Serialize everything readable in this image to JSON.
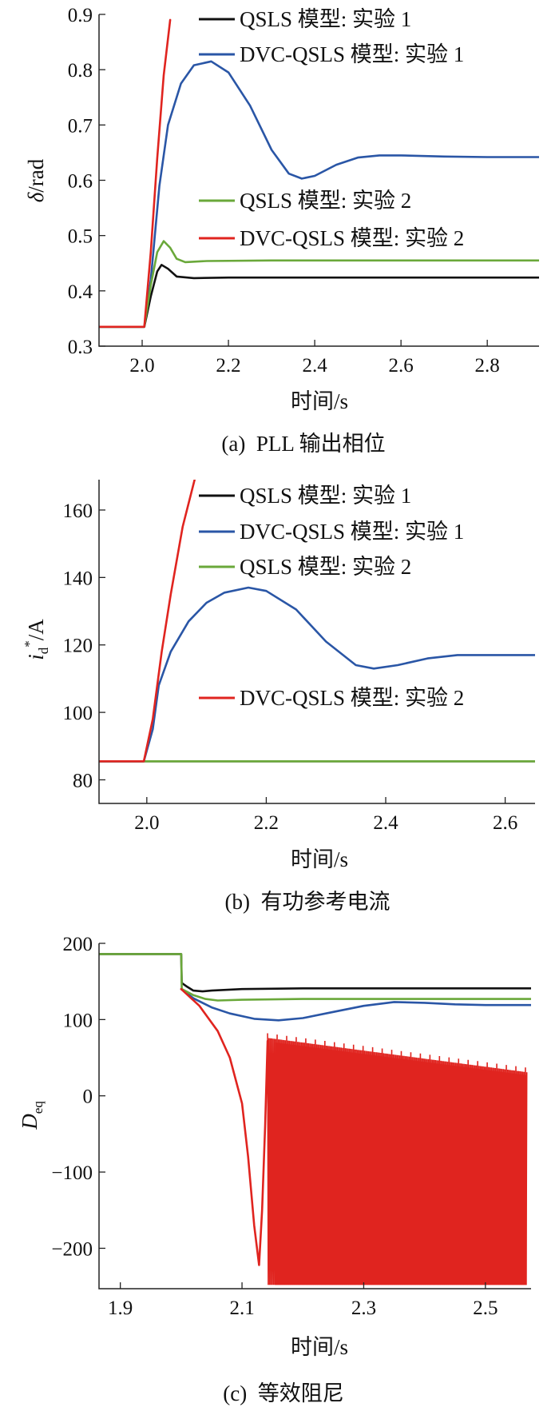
{
  "colors": {
    "black": "#111111",
    "blue": "#2a56a6",
    "green": "#6aa83a",
    "red": "#e0241f"
  },
  "chart_data": [
    {
      "type": "line",
      "caption": "(a)  PLL 输出相位",
      "xlabel": "时间/s",
      "ylabel_symbol": "δ",
      "ylabel_unit": "/rad",
      "xlim": [
        1.9,
        2.92
      ],
      "ylim": [
        0.3,
        0.9
      ],
      "xticks": [
        "2.0",
        "2.2",
        "2.4",
        "2.6",
        "2.8"
      ],
      "yticks": [
        "0.3",
        "0.4",
        "0.5",
        "0.6",
        "0.7",
        "0.8",
        "0.9"
      ],
      "legend_top": [
        "QSLS 模型: 实验 1",
        "DVC-QSLS 模型: 实验 1"
      ],
      "legend_bottom": [
        "QSLS 模型: 实验 2",
        "DVC-QSLS 模型: 实验 2"
      ],
      "series": [
        {
          "name": "QSLS 模型: 实验 1",
          "color": "black",
          "x": [
            1.9,
            2.005,
            2.02,
            2.035,
            2.045,
            2.06,
            2.08,
            2.12,
            2.2,
            2.5,
            2.92
          ],
          "y": [
            0.335,
            0.335,
            0.39,
            0.435,
            0.447,
            0.44,
            0.426,
            0.423,
            0.424,
            0.424,
            0.424
          ]
        },
        {
          "name": "DVC-QSLS 模型: 实验 1",
          "color": "blue",
          "x": [
            1.9,
            2.005,
            2.02,
            2.04,
            2.06,
            2.09,
            2.12,
            2.16,
            2.2,
            2.25,
            2.3,
            2.34,
            2.37,
            2.4,
            2.45,
            2.5,
            2.55,
            2.6,
            2.7,
            2.8,
            2.92
          ],
          "y": [
            0.335,
            0.335,
            0.42,
            0.59,
            0.7,
            0.775,
            0.808,
            0.815,
            0.795,
            0.735,
            0.655,
            0.612,
            0.603,
            0.608,
            0.628,
            0.641,
            0.645,
            0.645,
            0.643,
            0.642,
            0.642
          ]
        },
        {
          "name": "QSLS 模型: 实验 2",
          "color": "green",
          "x": [
            1.9,
            2.005,
            2.02,
            2.035,
            2.05,
            2.065,
            2.08,
            2.1,
            2.15,
            2.3,
            2.92
          ],
          "y": [
            0.335,
            0.335,
            0.41,
            0.47,
            0.49,
            0.478,
            0.458,
            0.452,
            0.454,
            0.455,
            0.455
          ]
        },
        {
          "name": "DVC-QSLS 模型: 实验 2",
          "color": "red",
          "x": [
            1.9,
            2.005,
            2.02,
            2.035,
            2.05,
            2.065
          ],
          "y": [
            0.335,
            0.335,
            0.47,
            0.64,
            0.79,
            0.89
          ]
        }
      ]
    },
    {
      "type": "line",
      "caption": "(b)  有功参考电流",
      "xlabel": "时间/s",
      "ylabel_symbol": "i",
      "ylabel_sub": "d",
      "ylabel_sup": "*",
      "ylabel_unit": "/A",
      "xlim": [
        1.92,
        2.65
      ],
      "ylim": [
        73,
        169
      ],
      "xticks": [
        "2.0",
        "2.2",
        "2.4",
        "2.6"
      ],
      "yticks": [
        "80",
        "100",
        "120",
        "140",
        "160"
      ],
      "legend_top": [
        "QSLS 模型: 实验 1",
        "DVC-QSLS 模型: 实验 1",
        "QSLS 模型: 实验 2"
      ],
      "legend_bottom": [
        "DVC-QSLS 模型: 实验 2"
      ],
      "series": [
        {
          "name": "QSLS 模型: 实验 1",
          "color": "black",
          "x": [
            1.92,
            2.65
          ],
          "y": [
            85.5,
            85.5
          ]
        },
        {
          "name": "QSLS 模型: 实验 2",
          "color": "green",
          "x": [
            1.92,
            2.65
          ],
          "y": [
            85.5,
            85.5
          ]
        },
        {
          "name": "DVC-QSLS 模型: 实验 1",
          "color": "blue",
          "x": [
            1.92,
            1.995,
            2.01,
            2.02,
            2.04,
            2.07,
            2.1,
            2.13,
            2.17,
            2.2,
            2.25,
            2.3,
            2.35,
            2.38,
            2.42,
            2.47,
            2.52,
            2.58,
            2.65
          ],
          "y": [
            85.5,
            85.5,
            95,
            108,
            118,
            127,
            132.5,
            135.5,
            137,
            136,
            130.5,
            121,
            114,
            113,
            114,
            116,
            117,
            117,
            117
          ]
        },
        {
          "name": "DVC-QSLS 模型: 实验 2",
          "color": "red",
          "x": [
            1.92,
            1.995,
            2.01,
            2.025,
            2.04,
            2.06,
            2.08
          ],
          "y": [
            85.5,
            85.5,
            98,
            118,
            135,
            155,
            169
          ]
        }
      ]
    },
    {
      "type": "line",
      "caption": "(c)  等效阻尼",
      "xlabel": "时间/s",
      "ylabel_symbol": "D",
      "ylabel_sub": "eq",
      "xlim": [
        1.865,
        2.575
      ],
      "ylim": [
        -253,
        200
      ],
      "xticks": [
        "1.9",
        "2.1",
        "2.3",
        "2.5"
      ],
      "yticks": [
        "−200",
        "−100",
        "0",
        "100",
        "200"
      ],
      "ytick_values": [
        -200,
        -100,
        0,
        100,
        200
      ],
      "series": [
        {
          "name": "QSLS 模型: 实验 1",
          "color": "black",
          "x": [
            1.865,
            2.0,
            2.001,
            2.01,
            2.02,
            2.035,
            2.05,
            2.1,
            2.2,
            2.575
          ],
          "y": [
            186,
            186,
            148,
            143,
            138,
            137,
            138,
            140,
            141,
            141
          ]
        },
        {
          "name": "DVC-QSLS 模型: 实验 1",
          "color": "blue",
          "x": [
            2.0,
            2.02,
            2.05,
            2.08,
            2.12,
            2.16,
            2.2,
            2.25,
            2.3,
            2.35,
            2.4,
            2.45,
            2.5,
            2.575
          ],
          "y": [
            140,
            128,
            116,
            108,
            101,
            99,
            102,
            110,
            118,
            123,
            122,
            120,
            119,
            119
          ]
        },
        {
          "name": "QSLS 模型: 实验 2",
          "color": "green",
          "x": [
            1.865,
            2.0,
            2.001,
            2.02,
            2.04,
            2.06,
            2.1,
            2.2,
            2.575
          ],
          "y": [
            186,
            186,
            140,
            132,
            127,
            125,
            126,
            127,
            127
          ]
        },
        {
          "name": "DVC-QSLS 模型: 实验 2",
          "color": "red",
          "x": [
            2.0,
            2.03,
            2.06,
            2.08,
            2.1,
            2.11,
            2.12,
            2.128,
            2.133,
            2.138,
            2.142
          ],
          "y": [
            140,
            118,
            85,
            50,
            -10,
            -80,
            -170,
            -222,
            -150,
            -40,
            72
          ]
        }
      ],
      "oscillation": {
        "name": "DVC-QSLS 模型: 实验 2",
        "color": "red",
        "x_start": 2.142,
        "x_end": 2.568,
        "upper_start": 76,
        "upper_end": 31,
        "lower": -248
      }
    }
  ]
}
